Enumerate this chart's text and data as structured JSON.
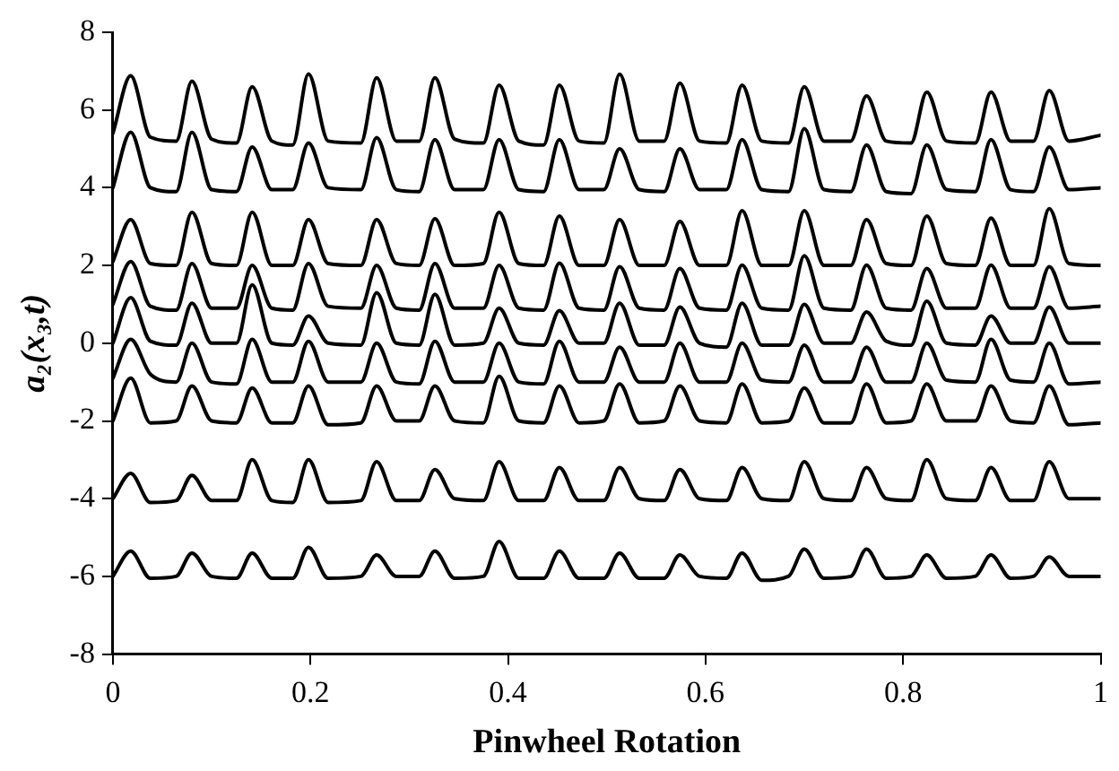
{
  "chart_data": {
    "type": "line",
    "xlabel": "Pinwheel Rotation",
    "ylabel": "a₂(x₃,t)",
    "grid": false,
    "marker": "none",
    "line_style": "solid",
    "xlim": [
      0,
      1
    ],
    "xticks": [
      0,
      0.2,
      0.4,
      0.6,
      0.8,
      1
    ],
    "ylim": [
      -8,
      8
    ],
    "yticks": [
      -8,
      -6,
      -4,
      -2,
      0,
      2,
      4,
      6,
      8
    ],
    "x": [
      0,
      0.018,
      0.038,
      0.064,
      0.08,
      0.1,
      0.125,
      0.141,
      0.161,
      0.182,
      0.198,
      0.218,
      0.251,
      0.267,
      0.287,
      0.31,
      0.326,
      0.346,
      0.375,
      0.391,
      0.411,
      0.436,
      0.452,
      0.472,
      0.497,
      0.513,
      0.533,
      0.558,
      0.574,
      0.594,
      0.621,
      0.637,
      0.657,
      0.684,
      0.7,
      0.72,
      0.747,
      0.763,
      0.783,
      0.808,
      0.824,
      0.844,
      0.873,
      0.889,
      0.909,
      0.932,
      0.948,
      0.968,
      1
    ],
    "series": [
      {
        "color": "#000000",
        "values": [
          5.4,
          6.88,
          5.3,
          5.2,
          6.74,
          5.25,
          5.15,
          6.6,
          5.2,
          5.1,
          6.93,
          5.2,
          5.15,
          6.83,
          5.2,
          5.2,
          6.83,
          5.25,
          5.15,
          6.64,
          5.2,
          5.1,
          6.64,
          5.2,
          5.15,
          6.92,
          5.2,
          5.2,
          6.69,
          5.2,
          5.15,
          6.64,
          5.2,
          5.15,
          6.6,
          5.2,
          5.2,
          6.36,
          5.2,
          5.15,
          6.46,
          5.2,
          5.15,
          6.46,
          5.2,
          5.2,
          6.5,
          5.2,
          5.35
        ]
      },
      {
        "color": "#000000",
        "values": [
          4.0,
          5.43,
          4.0,
          3.9,
          5.43,
          3.95,
          3.9,
          5.05,
          3.95,
          3.95,
          5.15,
          4.0,
          3.95,
          5.29,
          3.95,
          3.9,
          5.24,
          3.95,
          3.95,
          5.24,
          3.95,
          3.9,
          5.24,
          3.95,
          3.95,
          5.0,
          3.95,
          3.9,
          5.0,
          3.95,
          3.95,
          5.24,
          3.95,
          3.9,
          5.52,
          3.95,
          3.9,
          5.1,
          3.9,
          3.85,
          5.1,
          3.95,
          3.9,
          5.24,
          3.95,
          3.9,
          5.05,
          3.95,
          4.0
        ]
      },
      {
        "color": "#000000",
        "values": [
          2.1,
          3.18,
          2.05,
          2.0,
          3.37,
          2.05,
          2.0,
          3.37,
          2.0,
          2.0,
          3.18,
          2.05,
          2.0,
          3.18,
          2.05,
          2.0,
          3.2,
          2.0,
          2.05,
          3.37,
          2.05,
          2.0,
          3.27,
          2.0,
          2.0,
          3.18,
          2.0,
          2.0,
          3.13,
          2.0,
          2.0,
          3.41,
          2.0,
          2.0,
          3.41,
          2.0,
          2.0,
          3.18,
          2.05,
          2.0,
          3.27,
          2.05,
          2.0,
          3.22,
          2.0,
          2.0,
          3.46,
          2.05,
          2.0
        ]
      },
      {
        "color": "#000000",
        "values": [
          1.0,
          2.1,
          0.95,
          0.85,
          2.05,
          0.9,
          0.9,
          2.0,
          0.9,
          0.85,
          2.05,
          0.95,
          0.9,
          2.0,
          0.9,
          0.85,
          2.05,
          0.9,
          0.9,
          2.0,
          0.9,
          0.85,
          2.06,
          0.9,
          0.85,
          1.97,
          0.9,
          0.85,
          1.92,
          0.9,
          0.85,
          2.01,
          0.9,
          0.85,
          2.25,
          0.9,
          0.85,
          2.01,
          0.9,
          0.85,
          1.92,
          0.9,
          0.9,
          2.01,
          0.9,
          0.9,
          1.97,
          0.9,
          0.95
        ]
      },
      {
        "color": "#000000",
        "values": [
          0.0,
          1.17,
          0.05,
          -0.05,
          1.03,
          0.0,
          0.0,
          1.5,
          0.0,
          -0.05,
          0.7,
          0.0,
          -0.05,
          1.3,
          0.0,
          -0.05,
          1.26,
          -0.05,
          0.0,
          0.9,
          0.0,
          -0.05,
          0.84,
          0.0,
          0.0,
          1.03,
          -0.05,
          -0.05,
          0.93,
          0.0,
          -0.1,
          1.03,
          -0.05,
          -0.05,
          1.0,
          0.0,
          0.0,
          0.8,
          0.05,
          -0.05,
          1.08,
          0.0,
          -0.05,
          0.7,
          0.0,
          0.0,
          0.93,
          0.0,
          0.0
        ]
      },
      {
        "color": "#000000",
        "values": [
          -0.9,
          0.1,
          -0.8,
          -1.0,
          0.0,
          -1.0,
          -1.05,
          0.1,
          -1.0,
          -1.0,
          0.05,
          -1.0,
          -1.0,
          0.0,
          -1.0,
          -1.05,
          0.05,
          -1.0,
          -1.0,
          0.0,
          -1.0,
          -1.05,
          0.05,
          -1.0,
          -1.0,
          -0.1,
          -1.0,
          -1.0,
          0.0,
          -1.0,
          -1.0,
          0.0,
          -0.95,
          -1.0,
          -0.05,
          -1.0,
          -1.0,
          -0.1,
          -1.0,
          -1.0,
          0.0,
          -0.95,
          -1.0,
          0.1,
          -0.95,
          -1.0,
          0.0,
          -1.05,
          -1.0
        ]
      },
      {
        "color": "#000000",
        "values": [
          -2.0,
          -0.9,
          -2.05,
          -2.0,
          -1.1,
          -2.0,
          -2.05,
          -1.15,
          -2.05,
          -2.05,
          -1.1,
          -2.1,
          -2.05,
          -1.1,
          -2.0,
          -2.0,
          -1.1,
          -2.0,
          -2.05,
          -0.85,
          -2.0,
          -2.05,
          -1.1,
          -2.05,
          -2.0,
          -1.05,
          -2.05,
          -2.0,
          -1.1,
          -2.0,
          -2.05,
          -1.05,
          -2.05,
          -2.0,
          -1.15,
          -2.05,
          -2.05,
          -1.05,
          -2.05,
          -2.0,
          -1.05,
          -2.0,
          -2.0,
          -1.1,
          -2.0,
          -2.05,
          -1.1,
          -2.1,
          -2.05
        ]
      },
      {
        "color": "#000000",
        "values": [
          -4.0,
          -3.35,
          -4.1,
          -4.05,
          -3.4,
          -4.05,
          -4.05,
          -3.0,
          -4.05,
          -4.1,
          -3.0,
          -4.1,
          -4.05,
          -3.05,
          -4.05,
          -4.05,
          -3.25,
          -4.0,
          -4.05,
          -3.05,
          -4.05,
          -4.05,
          -3.2,
          -4.05,
          -4.05,
          -3.2,
          -4.0,
          -4.05,
          -3.25,
          -4.0,
          -4.05,
          -3.2,
          -4.0,
          -4.05,
          -3.05,
          -4.0,
          -4.05,
          -3.2,
          -4.0,
          -4.05,
          -3.0,
          -4.0,
          -4.05,
          -3.2,
          -4.05,
          -4.05,
          -3.05,
          -4.0,
          -4.0
        ]
      },
      {
        "color": "#000000",
        "values": [
          -6.0,
          -5.35,
          -6.05,
          -6.0,
          -5.4,
          -6.0,
          -6.05,
          -5.4,
          -6.05,
          -6.05,
          -5.25,
          -6.05,
          -6.0,
          -5.45,
          -6.0,
          -6.0,
          -5.35,
          -6.05,
          -6.0,
          -5.1,
          -6.05,
          -6.05,
          -5.35,
          -6.05,
          -6.05,
          -5.4,
          -6.05,
          -6.05,
          -5.45,
          -6.0,
          -6.05,
          -5.4,
          -6.1,
          -6.0,
          -5.3,
          -6.05,
          -6.0,
          -5.3,
          -6.05,
          -6.0,
          -5.45,
          -6.05,
          -6.0,
          -5.45,
          -6.05,
          -6.0,
          -5.5,
          -6.0,
          -6.0
        ]
      }
    ]
  }
}
